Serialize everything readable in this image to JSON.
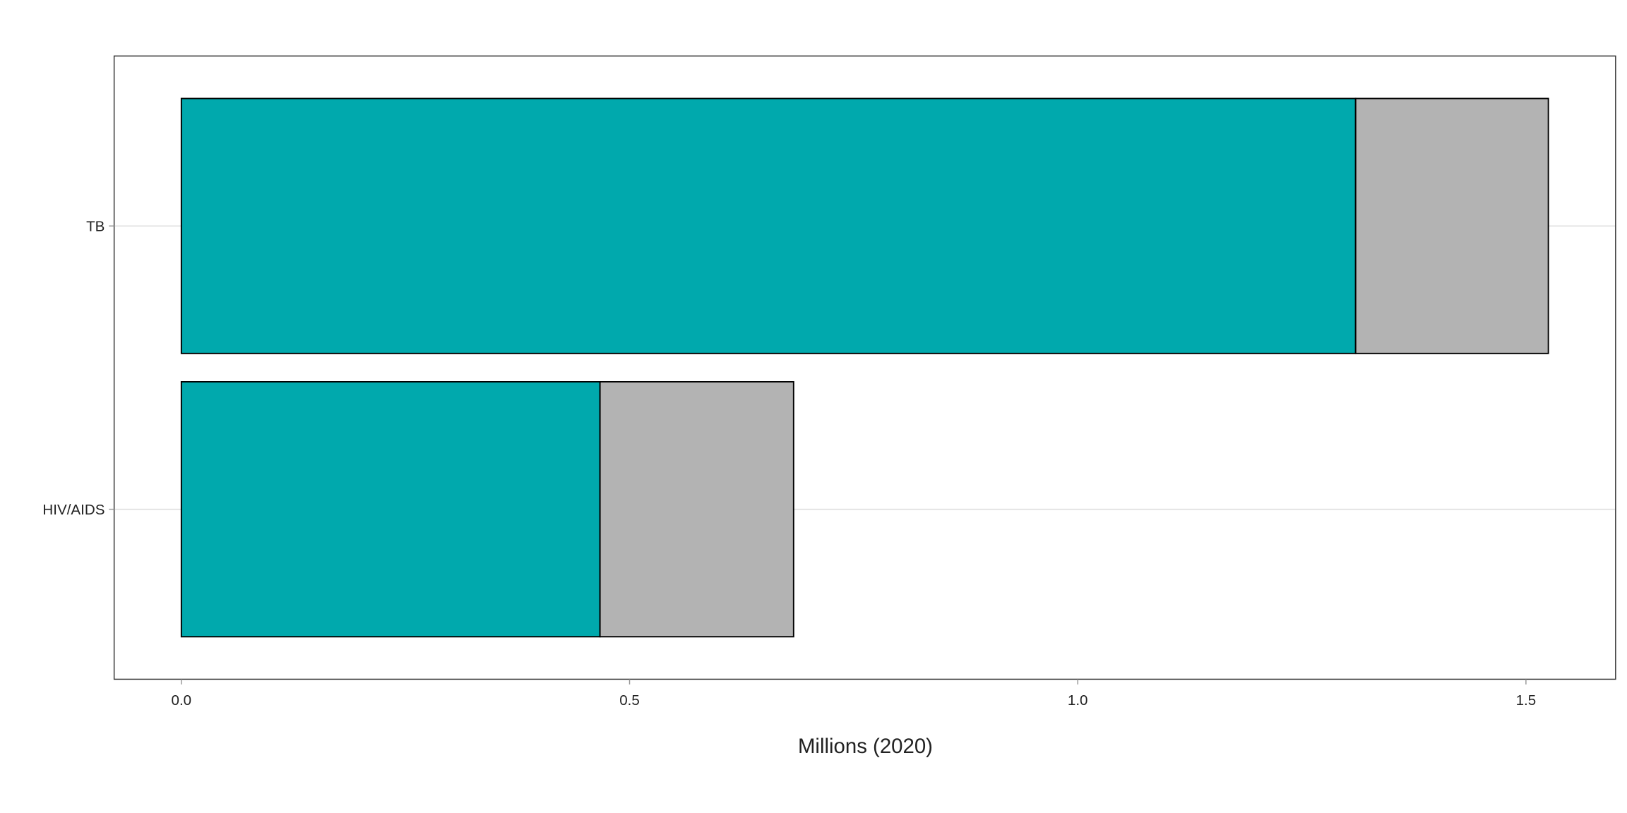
{
  "chart_data": {
    "type": "bar",
    "orientation": "horizontal",
    "stacked": true,
    "title": "",
    "xlabel": "Millions (2020)",
    "ylabel": "",
    "categories": [
      "TB",
      "HIV/AIDS"
    ],
    "series": [
      {
        "color": "#00A9AD",
        "values": [
          1.31,
          0.467
        ]
      },
      {
        "color": "#B3B3B3",
        "values": [
          0.215,
          0.216
        ]
      }
    ],
    "xlim": [
      -0.075,
      1.6
    ],
    "xticks": [
      0.0,
      0.5,
      1.0,
      1.5
    ],
    "xtick_labels": [
      "0.0",
      "0.5",
      "1.0",
      "1.5"
    ],
    "grid": "major y only",
    "legend": "none"
  }
}
